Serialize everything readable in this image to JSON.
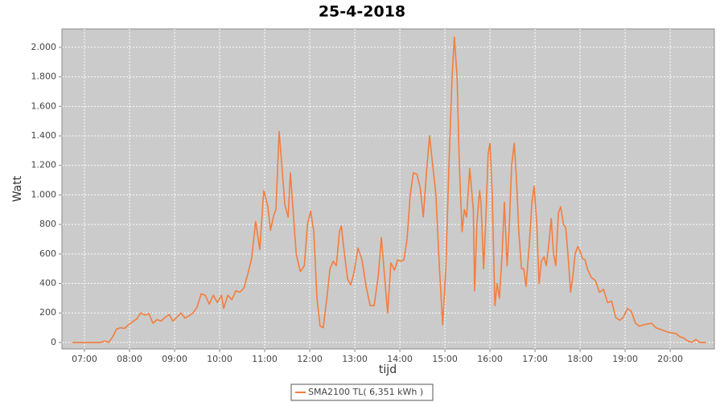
{
  "chart_data": {
    "type": "line",
    "title": "25-4-2018",
    "xlabel": "tijd",
    "ylabel": "Watt",
    "x": [
      6.73,
      7.36,
      7.45,
      7.54,
      7.63,
      7.71,
      7.8,
      7.89,
      7.98,
      8.07,
      8.16,
      8.25,
      8.34,
      8.43,
      8.52,
      8.61,
      8.7,
      8.79,
      8.88,
      8.96,
      9.05,
      9.14,
      9.23,
      9.32,
      9.41,
      9.5,
      9.59,
      9.68,
      9.77,
      9.86,
      9.95,
      10.04,
      10.09,
      10.18,
      10.27,
      10.36,
      10.45,
      10.54,
      10.63,
      10.71,
      10.8,
      10.89,
      10.98,
      11.07,
      11.13,
      11.2,
      11.25,
      11.32,
      11.38,
      11.45,
      11.52,
      11.57,
      11.63,
      11.7,
      11.79,
      11.88,
      11.95,
      12.02,
      12.09,
      12.16,
      12.23,
      12.3,
      12.38,
      12.45,
      12.52,
      12.59,
      12.66,
      12.7,
      12.77,
      12.84,
      12.91,
      12.98,
      13.07,
      13.16,
      13.25,
      13.34,
      13.43,
      13.52,
      13.59,
      13.66,
      13.73,
      13.8,
      13.88,
      13.95,
      14.02,
      14.09,
      14.16,
      14.23,
      14.3,
      14.38,
      14.45,
      14.52,
      14.59,
      14.66,
      14.73,
      14.8,
      14.88,
      14.95,
      15.02,
      15.09,
      15.16,
      15.21,
      15.27,
      15.32,
      15.38,
      15.43,
      15.48,
      15.55,
      15.63,
      15.66,
      15.71,
      15.77,
      15.8,
      15.86,
      15.91,
      15.96,
      16.0,
      16.05,
      16.11,
      16.16,
      16.21,
      16.27,
      16.32,
      16.38,
      16.43,
      16.48,
      16.54,
      16.59,
      16.64,
      16.7,
      16.75,
      16.8,
      16.88,
      16.93,
      16.98,
      17.04,
      17.09,
      17.14,
      17.2,
      17.25,
      17.3,
      17.36,
      17.41,
      17.46,
      17.52,
      17.57,
      17.63,
      17.68,
      17.73,
      17.79,
      17.84,
      17.89,
      17.95,
      18.0,
      18.05,
      18.11,
      18.16,
      18.25,
      18.34,
      18.43,
      18.52,
      18.61,
      18.7,
      18.79,
      18.88,
      18.96,
      19.05,
      19.14,
      19.23,
      19.32,
      19.41,
      19.59,
      19.68,
      19.77,
      19.95,
      20.13,
      20.21,
      20.3,
      20.39,
      20.48,
      20.57,
      20.66,
      20.8
    ],
    "series": [
      {
        "name": "SMA2100 TL( 6,351 kWh )",
        "color": "#f47d3c",
        "values": [
          0,
          0,
          10,
          0,
          40,
          90,
          100,
          95,
          120,
          140,
          160,
          200,
          185,
          195,
          130,
          155,
          145,
          170,
          190,
          145,
          170,
          200,
          165,
          180,
          200,
          240,
          330,
          320,
          260,
          320,
          270,
          320,
          230,
          320,
          290,
          350,
          340,
          370,
          470,
          570,
          820,
          630,
          1030,
          920,
          760,
          860,
          900,
          1430,
          1200,
          930,
          850,
          1150,
          900,
          600,
          480,
          520,
          800,
          890,
          750,
          300,
          110,
          100,
          300,
          500,
          550,
          520,
          750,
          790,
          600,
          430,
          390,
          470,
          640,
          560,
          380,
          250,
          250,
          450,
          710,
          450,
          200,
          540,
          490,
          560,
          550,
          560,
          700,
          1000,
          1150,
          1140,
          1050,
          850,
          1150,
          1400,
          1200,
          1000,
          500,
          120,
          500,
          1200,
          1800,
          2070,
          1800,
          1200,
          750,
          900,
          850,
          1180,
          900,
          350,
          800,
          1030,
          950,
          500,
          850,
          1280,
          1350,
          1000,
          250,
          400,
          300,
          600,
          950,
          520,
          800,
          1200,
          1350,
          1100,
          750,
          500,
          500,
          380,
          700,
          950,
          1060,
          800,
          400,
          550,
          580,
          520,
          650,
          840,
          600,
          520,
          880,
          920,
          800,
          780,
          600,
          340,
          450,
          600,
          650,
          620,
          570,
          560,
          500,
          440,
          420,
          340,
          360,
          270,
          280,
          170,
          150,
          170,
          230,
          210,
          130,
          110,
          120,
          130,
          100,
          90,
          70,
          60,
          40,
          30,
          10,
          0,
          20,
          0,
          0
        ]
      }
    ],
    "xlim": [
      6.5,
      20.98
    ],
    "xticks": [
      {
        "value": 7,
        "label": "07:00"
      },
      {
        "value": 8,
        "label": "08:00"
      },
      {
        "value": 9,
        "label": "09:00"
      },
      {
        "value": 10,
        "label": "10:00"
      },
      {
        "value": 11,
        "label": "11:00"
      },
      {
        "value": 12,
        "label": "12:00"
      },
      {
        "value": 13,
        "label": "13:00"
      },
      {
        "value": 14,
        "label": "14:00"
      },
      {
        "value": 15,
        "label": "15:00"
      },
      {
        "value": 16,
        "label": "16:00"
      },
      {
        "value": 17,
        "label": "17:00"
      },
      {
        "value": 18,
        "label": "18:00"
      },
      {
        "value": 19,
        "label": "19:00"
      },
      {
        "value": 20,
        "label": "20:00"
      }
    ],
    "ylim": [
      -44,
      2125
    ],
    "yticks": [
      0,
      200,
      400,
      600,
      800,
      {
        "value": 1000,
        "label": "1.000"
      },
      {
        "value": 1200,
        "label": "1.200"
      },
      {
        "value": 1400,
        "label": "1.400"
      },
      {
        "value": 1600,
        "label": "1.600"
      },
      {
        "value": 1800,
        "label": "1.800"
      },
      {
        "value": 2000,
        "label": "2.000"
      }
    ],
    "grid": true
  }
}
